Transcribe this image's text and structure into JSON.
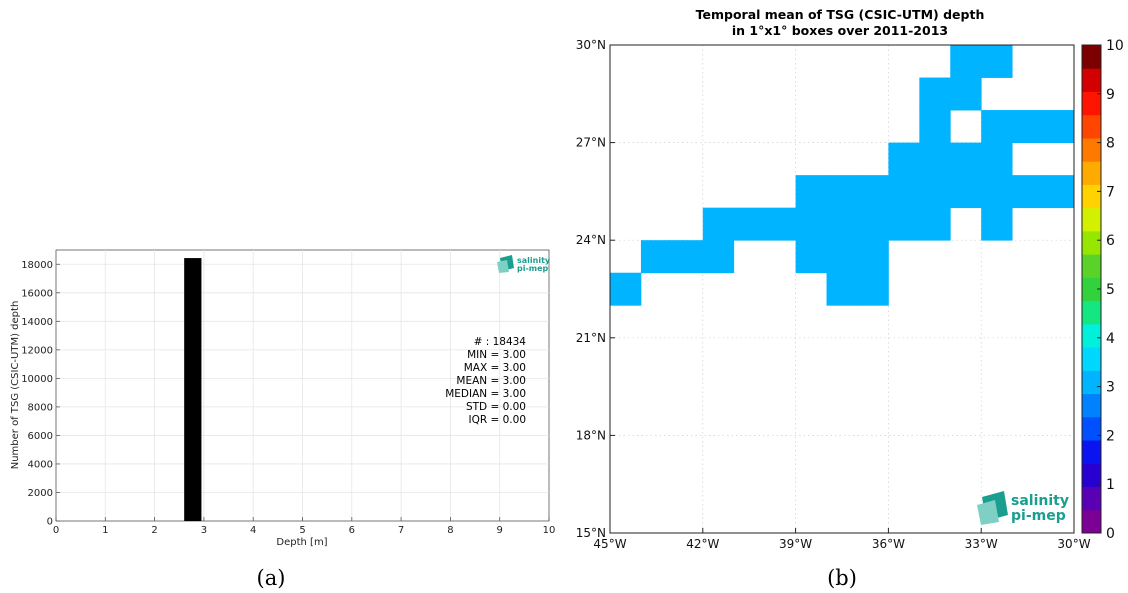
{
  "panel_a": {
    "caption": "(a)",
    "logo": {
      "line1": "salinity",
      "line2": "pi-mep"
    },
    "stats": [
      "# : 18434",
      "MIN = 3.00",
      "MAX =  3.00",
      "MEAN = 3.00",
      "MEDIAN = 3.00",
      "STD = 0.00",
      "IQR = 0.00"
    ]
  },
  "panel_b": {
    "caption": "(b)",
    "logo": {
      "line1": "salinity",
      "line2": "pi-mep"
    },
    "title_line1": "Temporal mean of TSG (CSIC-UTM) depth",
    "title_line2": "in 1°x1° boxes over 2011-2013"
  },
  "chart_data": [
    {
      "type": "bar",
      "xlabel": "Depth [m]",
      "ylabel": "Number of TSG (CSIC-UTM) depth",
      "xlim": [
        0,
        10
      ],
      "ylim": [
        0,
        19000
      ],
      "x_ticks": [
        0,
        1,
        2,
        3,
        4,
        5,
        6,
        7,
        8,
        9,
        10
      ],
      "y_ticks": [
        0,
        2000,
        4000,
        6000,
        8000,
        10000,
        12000,
        14000,
        16000,
        18000
      ],
      "grid": true,
      "bars": [
        {
          "x0": 2.6,
          "x1": 2.95,
          "value": 18434,
          "color": "#000000"
        }
      ]
    },
    {
      "type": "heatmap",
      "lon_range": [
        -45,
        -30
      ],
      "lat_range": [
        15,
        30
      ],
      "x_tick_labels": [
        "45°W",
        "42°W",
        "39°W",
        "36°W",
        "33°W",
        "30°W"
      ],
      "x_tick_values": [
        -45,
        -42,
        -39,
        -36,
        -33,
        -30
      ],
      "y_tick_labels": [
        "15°N",
        "18°N",
        "21°N",
        "24°N",
        "27°N",
        "30°N"
      ],
      "y_tick_values": [
        15,
        18,
        21,
        24,
        27,
        30
      ],
      "grid": true,
      "cell_color": "#00b4ff",
      "cells": [
        {
          "lon": -34,
          "lat": 29,
          "value": 3
        },
        {
          "lon": -33,
          "lat": 29,
          "value": 3
        },
        {
          "lon": -35,
          "lat": 28,
          "value": 3
        },
        {
          "lon": -34,
          "lat": 28,
          "value": 3
        },
        {
          "lon": -35,
          "lat": 27,
          "value": 3
        },
        {
          "lon": -33,
          "lat": 27,
          "value": 3
        },
        {
          "lon": -32,
          "lat": 27,
          "value": 3
        },
        {
          "lon": -31,
          "lat": 27,
          "value": 3
        },
        {
          "lon": -36,
          "lat": 26,
          "value": 3
        },
        {
          "lon": -35,
          "lat": 26,
          "value": 3
        },
        {
          "lon": -34,
          "lat": 26,
          "value": 3
        },
        {
          "lon": -33,
          "lat": 26,
          "value": 3
        },
        {
          "lon": -39,
          "lat": 25,
          "value": 3
        },
        {
          "lon": -38,
          "lat": 25,
          "value": 3
        },
        {
          "lon": -37,
          "lat": 25,
          "value": 3
        },
        {
          "lon": -36,
          "lat": 25,
          "value": 3
        },
        {
          "lon": -35,
          "lat": 25,
          "value": 3
        },
        {
          "lon": -34,
          "lat": 25,
          "value": 3
        },
        {
          "lon": -33,
          "lat": 25,
          "value": 3
        },
        {
          "lon": -32,
          "lat": 25,
          "value": 3
        },
        {
          "lon": -31,
          "lat": 25,
          "value": 3
        },
        {
          "lon": -42,
          "lat": 24,
          "value": 3
        },
        {
          "lon": -41,
          "lat": 24,
          "value": 3
        },
        {
          "lon": -40,
          "lat": 24,
          "value": 3
        },
        {
          "lon": -39,
          "lat": 24,
          "value": 3
        },
        {
          "lon": -38,
          "lat": 24,
          "value": 3
        },
        {
          "lon": -37,
          "lat": 24,
          "value": 3
        },
        {
          "lon": -36,
          "lat": 24,
          "value": 3
        },
        {
          "lon": -35,
          "lat": 24,
          "value": 3
        },
        {
          "lon": -33,
          "lat": 24,
          "value": 3
        },
        {
          "lon": -44,
          "lat": 23,
          "value": 3
        },
        {
          "lon": -43,
          "lat": 23,
          "value": 3
        },
        {
          "lon": -42,
          "lat": 23,
          "value": 3
        },
        {
          "lon": -39,
          "lat": 23,
          "value": 3
        },
        {
          "lon": -38,
          "lat": 23,
          "value": 3
        },
        {
          "lon": -37,
          "lat": 23,
          "value": 3
        },
        {
          "lon": -45,
          "lat": 22,
          "value": 3
        },
        {
          "lon": -38,
          "lat": 22,
          "value": 3
        },
        {
          "lon": -37,
          "lat": 22,
          "value": 3
        }
      ],
      "colorbar": {
        "range": [
          0,
          10
        ],
        "tick_values": [
          0,
          1,
          2,
          3,
          4,
          5,
          6,
          7,
          8,
          9,
          10
        ],
        "tick_labels": [
          "0",
          "1",
          "2",
          "3",
          "4",
          "5",
          "6",
          "7",
          "8",
          "9",
          "10"
        ],
        "colors": [
          "#7d0096",
          "#5a00b4",
          "#2800d2",
          "#0a14f0",
          "#0050ff",
          "#0082ff",
          "#00b4ff",
          "#00d7ff",
          "#00f0dc",
          "#14e682",
          "#32d23c",
          "#5ad228",
          "#96e600",
          "#d2f000",
          "#ffd200",
          "#ffaa00",
          "#ff7800",
          "#ff4600",
          "#ff1400",
          "#d20000",
          "#7d0000"
        ]
      }
    }
  ]
}
